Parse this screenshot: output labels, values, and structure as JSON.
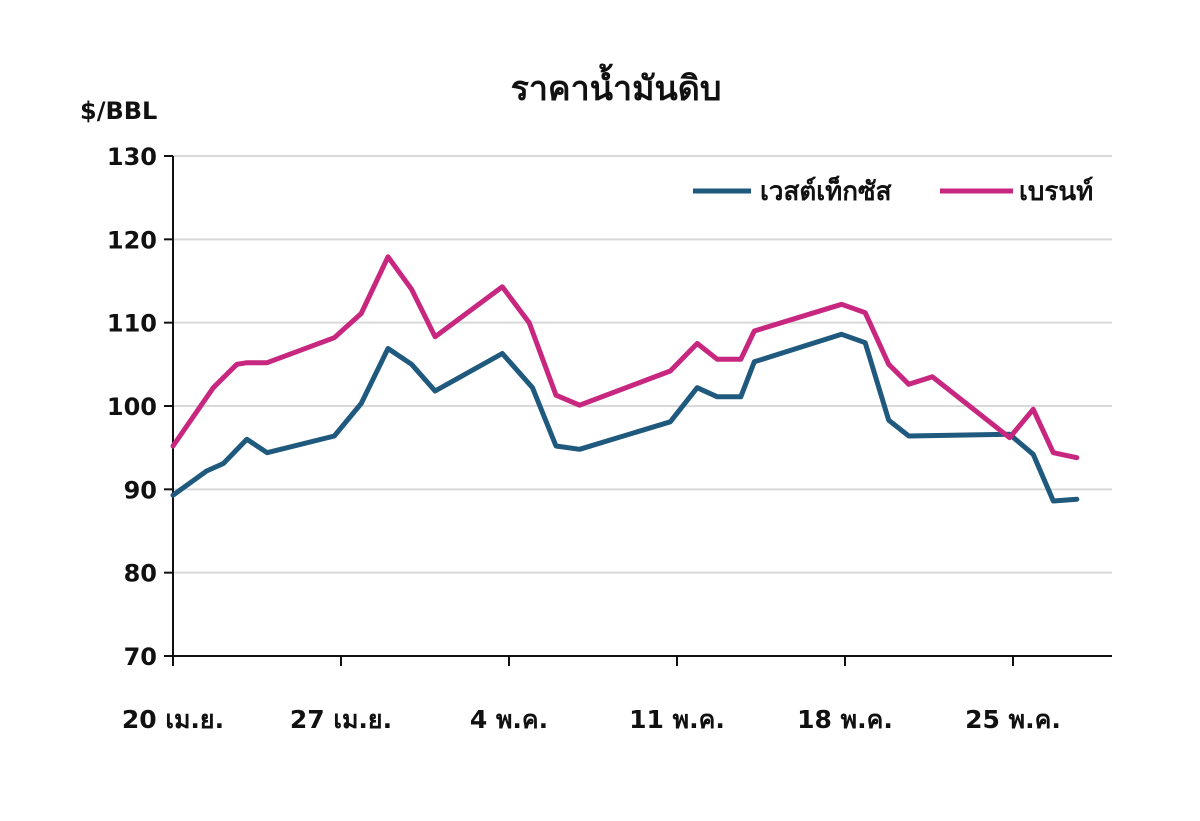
{
  "chart_data": {
    "type": "line",
    "title": "ราคาน้ำมันดิบ",
    "ylabel": "$/BBL",
    "xlabel": "",
    "ylim": [
      70,
      130
    ],
    "yticks": [
      70,
      80,
      90,
      100,
      110,
      120,
      130
    ],
    "xlim": [
      0,
      27
    ],
    "xticks": [
      {
        "x": 0,
        "label": "20 เม.ย."
      },
      {
        "x": 5,
        "label": "27 เม.ย."
      },
      {
        "x": 10,
        "label": "4 พ.ค."
      },
      {
        "x": 15,
        "label": "11 พ.ค."
      },
      {
        "x": 20,
        "label": "18 พ.ค."
      },
      {
        "x": 25,
        "label": "25 พ.ค."
      }
    ],
    "grid": true,
    "legend_position": "top-right",
    "series": [
      {
        "name": "เวสต์เท็กซัส",
        "color": "#1f5a7e",
        "x": [
          0,
          1,
          1.5,
          2.2,
          2.8,
          4.8,
          5.6,
          6.4,
          7.1,
          7.8,
          9.8,
          10.7,
          11.4,
          12.1,
          14.8,
          15.6,
          16.2,
          16.9,
          17.3,
          19.9,
          20.6,
          21.3,
          21.9,
          24.9,
          25.6,
          26.2,
          26.9
        ],
        "values": [
          89.3,
          92.2,
          93.1,
          96.0,
          94.4,
          96.4,
          100.3,
          106.9,
          105.0,
          101.8,
          106.3,
          102.2,
          95.2,
          94.8,
          98.1,
          102.2,
          101.1,
          101.1,
          105.3,
          108.6,
          107.6,
          98.3,
          96.4,
          96.6,
          94.2,
          88.6,
          88.8
        ]
      },
      {
        "name": "เบรนท์",
        "color": "#c8277f",
        "x": [
          0,
          1.2,
          1.9,
          2.2,
          2.8,
          4.8,
          5.6,
          6.4,
          7.1,
          7.8,
          9.8,
          10.6,
          11.4,
          12.1,
          14.8,
          15.6,
          16.2,
          16.9,
          17.3,
          19.9,
          20.6,
          21.3,
          21.9,
          22.6,
          24.9,
          25.6,
          26.2,
          26.9
        ],
        "values": [
          95.2,
          102.2,
          105.0,
          105.2,
          105.2,
          108.2,
          111.1,
          117.9,
          114.0,
          108.3,
          114.3,
          110.0,
          101.3,
          100.1,
          104.2,
          107.5,
          105.6,
          105.6,
          109.0,
          112.2,
          111.2,
          105.0,
          102.6,
          103.5,
          96.2,
          99.6,
          94.4,
          93.8
        ]
      }
    ]
  }
}
